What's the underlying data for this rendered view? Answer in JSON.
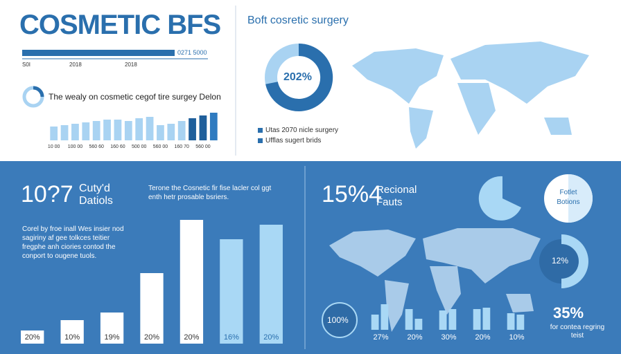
{
  "header": {
    "title": "COSMETIC BFS",
    "subtitle": "Boft cosretic surgery"
  },
  "progress": {
    "label": "0271 5000",
    "ticks": [
      "S0I",
      "2018",
      "2018"
    ]
  },
  "top_left": {
    "heading": "The wealy on cosmetic cegof tire surgey Delon"
  },
  "top_donut": {
    "label": "202%",
    "legend": [
      "Utas 2070 nicle surgery",
      "Ufflas sugert brids"
    ]
  },
  "bottom_left": {
    "big": "10?7",
    "big_side": "Cuty'd Datiols",
    "body": "Corel by froe inall Wes insier nod sagiriny af gee tolkces teitier fregphe anh ciories contod the conport to ougene tuols.",
    "note": "Terone the Cosnetic fir fise lacler col ggt enth hetr prosable bsriers."
  },
  "bottom_right": {
    "big": "15%4",
    "big_side": "Recional Fauts",
    "circle": "Fotlet Botions",
    "donut": "12%",
    "badge": "100%",
    "stat": "35%",
    "stat_note": "for contea regring teist"
  },
  "chart_data": [
    {
      "type": "bar",
      "categories": [
        "10 00",
        null,
        "100 00",
        null,
        "560 60",
        null,
        "160 60",
        null,
        "500 00",
        null,
        "560 00",
        null,
        "160 70",
        null,
        "560 00",
        null
      ],
      "values": [
        20,
        22,
        24,
        26,
        28,
        30,
        30,
        28,
        32,
        34,
        22,
        24,
        28,
        32,
        36,
        40
      ],
      "colors": [
        "#a9d3f2",
        "#a9d3f2",
        "#a9d3f2",
        "#a9d3f2",
        "#a9d3f2",
        "#a9d3f2",
        "#a9d3f2",
        "#a9d3f2",
        "#a9d3f2",
        "#a9d3f2",
        "#a9d3f2",
        "#a9d3f2",
        "#a9d3f2",
        "#1f5f9b",
        "#1f5f9b",
        "#2f7bc0"
      ]
    },
    {
      "type": "bar",
      "categories": [
        "20%",
        "10%",
        "19%",
        "20%",
        "20%",
        "16%",
        "20%"
      ],
      "values": [
        19,
        34,
        45,
        102,
        179,
        151,
        172
      ],
      "colors": [
        "#ffffff",
        "#ffffff",
        "#ffffff",
        "#ffffff",
        "#ffffff",
        "#a9d8f5",
        "#a9d8f5"
      ]
    },
    {
      "type": "grouped-bar",
      "categories": [
        "27%",
        "20%",
        "30%",
        "20%",
        "10%"
      ],
      "series": [
        {
          "color": "#a9d8f5",
          "values": [
            22,
            30,
            28,
            30,
            24
          ]
        },
        {
          "color": "#a9d8f5",
          "values": [
            37,
            16,
            30,
            32,
            22
          ]
        }
      ]
    }
  ]
}
